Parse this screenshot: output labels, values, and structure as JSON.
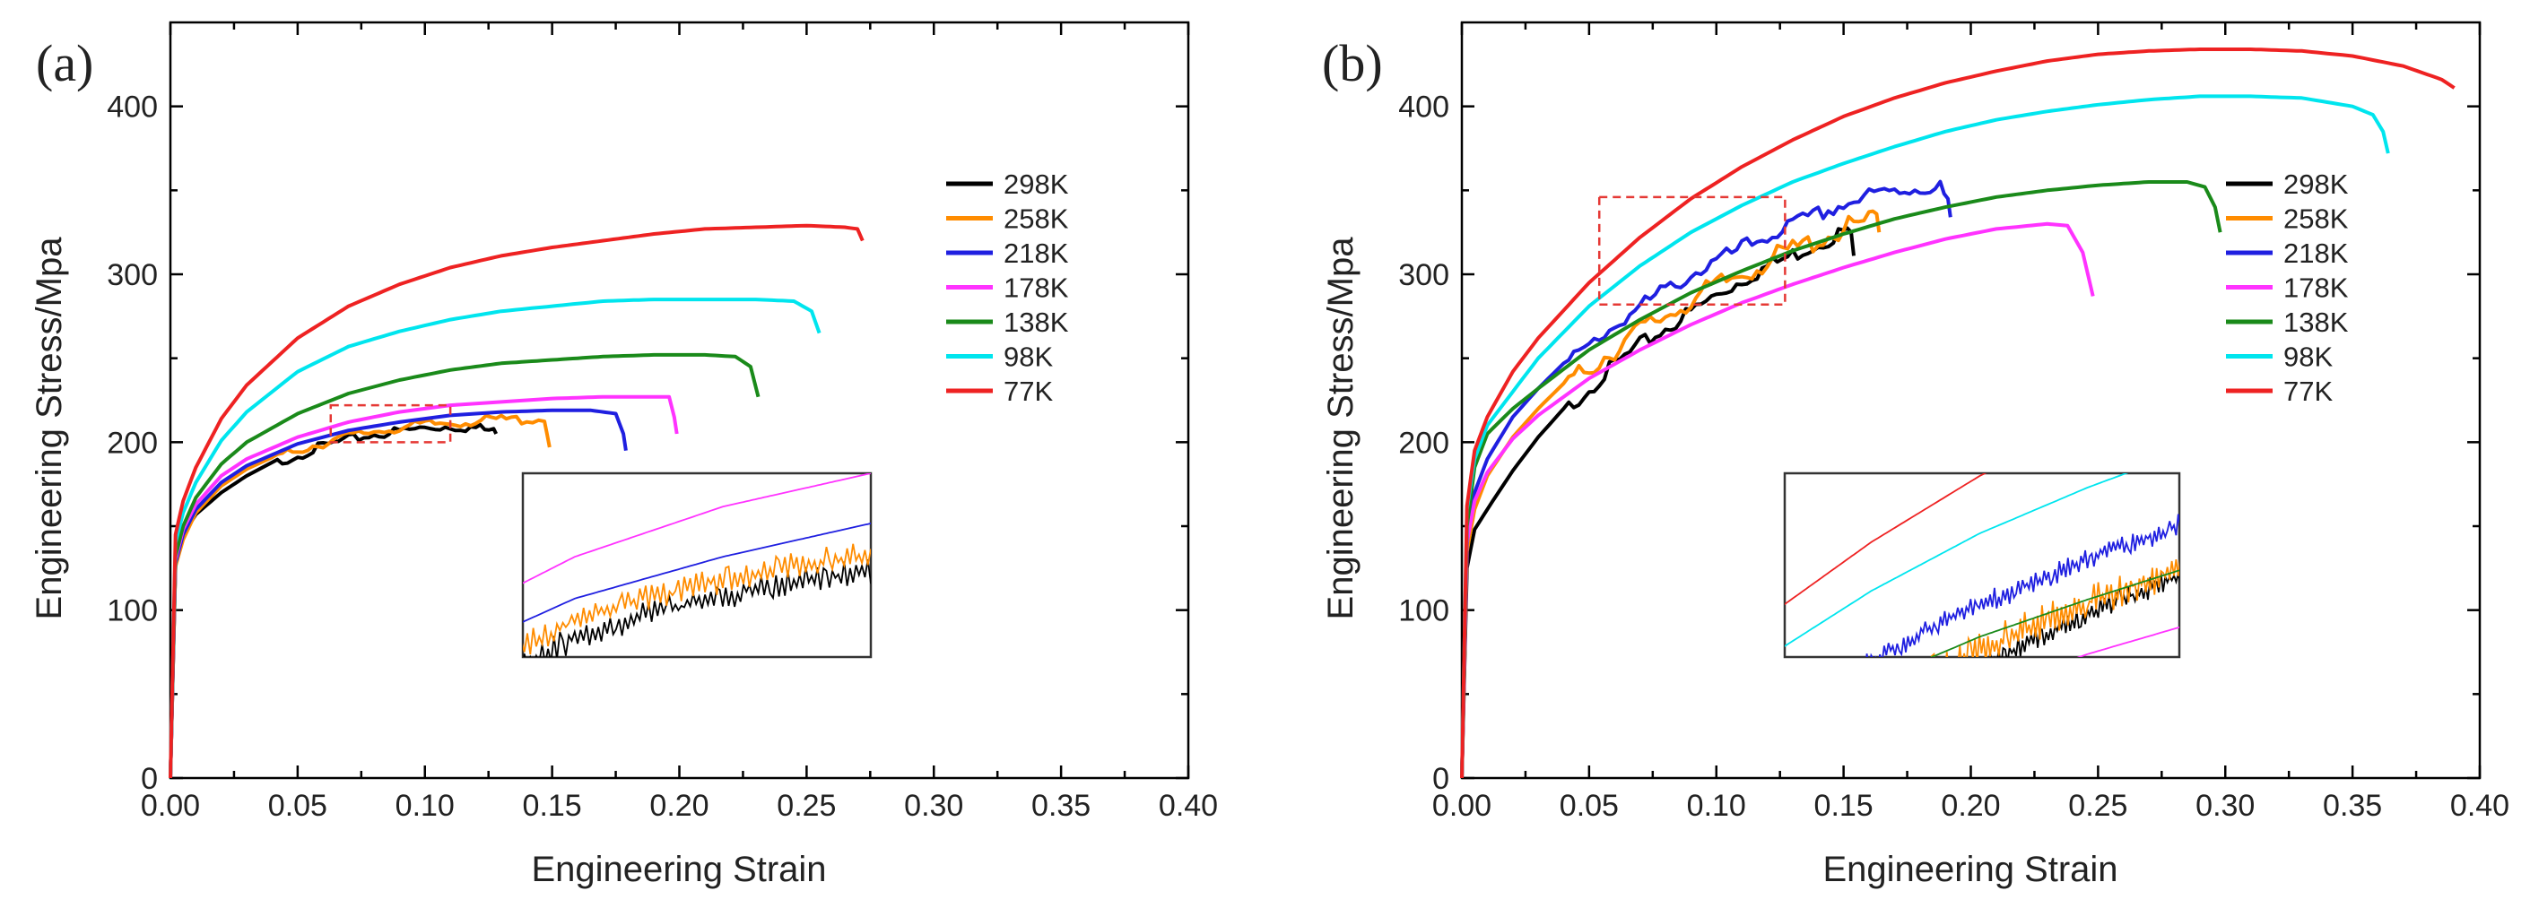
{
  "chart_data": [
    {
      "type": "line",
      "panel_label": "(a)",
      "xlabel": "Engineering Strain",
      "ylabel": "Engineering Stress/Mpa",
      "xlim": [
        0,
        0.4
      ],
      "ylim": [
        0,
        450
      ],
      "x_ticks": [
        "0.00",
        "0.05",
        "0.10",
        "0.15",
        "0.20",
        "0.25",
        "0.30",
        "0.35",
        "0.40"
      ],
      "y_ticks": [
        "0",
        "100",
        "200",
        "300",
        "400"
      ],
      "legend_position": "right",
      "zoom_box": {
        "x": [
          0.063,
          0.11
        ],
        "y": [
          200,
          222
        ]
      },
      "series": [
        {
          "name": "298K",
          "color": "#000000",
          "x": [
            0,
            0.002,
            0.005,
            0.01,
            0.02,
            0.03,
            0.04,
            0.05,
            0.06,
            0.07,
            0.08,
            0.09,
            0.1,
            0.11,
            0.12,
            0.127,
            0.128
          ],
          "y": [
            0,
            128,
            145,
            157,
            170,
            180,
            188,
            194,
            199,
            203,
            206,
            208,
            210,
            211,
            210,
            208,
            205
          ]
        },
        {
          "name": "258K",
          "color": "#ff8c00",
          "x": [
            0,
            0.002,
            0.005,
            0.01,
            0.02,
            0.03,
            0.04,
            0.05,
            0.06,
            0.07,
            0.08,
            0.09,
            0.1,
            0.11,
            0.12,
            0.13,
            0.14,
            0.147,
            0.148,
            0.149
          ],
          "y": [
            0,
            126,
            142,
            158,
            174,
            184,
            191,
            197,
            201,
            205,
            208,
            210,
            212,
            213,
            214,
            215,
            215,
            215,
            205,
            197
          ]
        },
        {
          "name": "218K",
          "color": "#1f1fe0",
          "x": [
            0,
            0.002,
            0.005,
            0.01,
            0.02,
            0.03,
            0.05,
            0.07,
            0.09,
            0.11,
            0.13,
            0.15,
            0.165,
            0.175,
            0.178,
            0.179
          ],
          "y": [
            0,
            128,
            145,
            160,
            176,
            186,
            199,
            207,
            212,
            216,
            218,
            219,
            219,
            217,
            205,
            195
          ]
        },
        {
          "name": "178K",
          "color": "#ff33ff",
          "x": [
            0,
            0.002,
            0.005,
            0.01,
            0.02,
            0.03,
            0.05,
            0.07,
            0.09,
            0.11,
            0.13,
            0.15,
            0.17,
            0.19,
            0.196,
            0.198,
            0.199
          ],
          "y": [
            0,
            130,
            148,
            163,
            180,
            190,
            203,
            212,
            218,
            222,
            224,
            226,
            227,
            227,
            227,
            215,
            205
          ]
        },
        {
          "name": "138K",
          "color": "#1a8a1a",
          "x": [
            0,
            0.002,
            0.005,
            0.01,
            0.02,
            0.03,
            0.05,
            0.07,
            0.09,
            0.11,
            0.13,
            0.15,
            0.17,
            0.19,
            0.21,
            0.222,
            0.228,
            0.231
          ],
          "y": [
            0,
            132,
            150,
            167,
            187,
            200,
            217,
            229,
            237,
            243,
            247,
            249,
            251,
            252,
            252,
            251,
            245,
            227
          ]
        },
        {
          "name": "98K",
          "color": "#00e5ee",
          "x": [
            0,
            0.002,
            0.005,
            0.01,
            0.02,
            0.03,
            0.05,
            0.07,
            0.09,
            0.11,
            0.13,
            0.15,
            0.17,
            0.19,
            0.21,
            0.23,
            0.245,
            0.252,
            0.255
          ],
          "y": [
            0,
            140,
            158,
            176,
            201,
            218,
            242,
            257,
            266,
            273,
            278,
            281,
            284,
            285,
            285,
            285,
            284,
            278,
            265
          ]
        },
        {
          "name": "77K",
          "color": "#ee2222",
          "x": [
            0,
            0.002,
            0.005,
            0.01,
            0.02,
            0.03,
            0.05,
            0.07,
            0.09,
            0.11,
            0.13,
            0.15,
            0.17,
            0.19,
            0.21,
            0.23,
            0.25,
            0.265,
            0.27,
            0.272
          ],
          "y": [
            0,
            145,
            165,
            185,
            214,
            234,
            262,
            281,
            294,
            304,
            311,
            316,
            320,
            324,
            327,
            328,
            329,
            328,
            327,
            320
          ]
        }
      ]
    },
    {
      "type": "line",
      "panel_label": "(b)",
      "xlabel": "Engineering Strain",
      "ylabel": "Engineering Stress/Mpa",
      "xlim": [
        0,
        0.4
      ],
      "ylim": [
        0,
        450
      ],
      "x_ticks": [
        "0.00",
        "0.05",
        "0.10",
        "0.15",
        "0.20",
        "0.25",
        "0.30",
        "0.35",
        "0.40"
      ],
      "y_ticks": [
        "0",
        "100",
        "200",
        "300",
        "400"
      ],
      "legend_position": "right",
      "zoom_box": {
        "x": [
          0.054,
          0.127
        ],
        "y": [
          282,
          346
        ]
      },
      "series": [
        {
          "name": "298K",
          "color": "#000000",
          "x": [
            0,
            0.002,
            0.005,
            0.01,
            0.02,
            0.03,
            0.04,
            0.05,
            0.06,
            0.07,
            0.08,
            0.09,
            0.1,
            0.11,
            0.12,
            0.13,
            0.14,
            0.15,
            0.153,
            0.154
          ],
          "y": [
            0,
            125,
            148,
            160,
            183,
            203,
            220,
            235,
            248,
            260,
            270,
            280,
            290,
            299,
            307,
            314,
            321,
            328,
            325,
            311
          ]
        },
        {
          "name": "258K",
          "color": "#ff8c00",
          "x": [
            0,
            0.002,
            0.005,
            0.01,
            0.02,
            0.03,
            0.04,
            0.05,
            0.06,
            0.07,
            0.08,
            0.09,
            0.1,
            0.11,
            0.12,
            0.13,
            0.14,
            0.15,
            0.16,
            0.163,
            0.164
          ],
          "y": [
            0,
            135,
            160,
            180,
            203,
            220,
            235,
            248,
            259,
            270,
            279,
            288,
            296,
            304,
            311,
            318,
            324,
            330,
            335,
            336,
            325
          ]
        },
        {
          "name": "218K",
          "color": "#1f1fe0",
          "x": [
            0,
            0.002,
            0.005,
            0.01,
            0.02,
            0.03,
            0.04,
            0.05,
            0.06,
            0.07,
            0.08,
            0.09,
            0.1,
            0.11,
            0.12,
            0.13,
            0.14,
            0.15,
            0.16,
            0.17,
            0.18,
            0.188,
            0.191,
            0.192
          ],
          "y": [
            0,
            140,
            170,
            190,
            215,
            232,
            247,
            260,
            272,
            283,
            293,
            302,
            310,
            318,
            325,
            332,
            338,
            344,
            349,
            352,
            354,
            354,
            345,
            334
          ]
        },
        {
          "name": "178K",
          "color": "#ff33ff",
          "x": [
            0,
            0.002,
            0.005,
            0.01,
            0.02,
            0.03,
            0.05,
            0.07,
            0.09,
            0.11,
            0.13,
            0.15,
            0.17,
            0.19,
            0.21,
            0.23,
            0.238,
            0.244,
            0.248
          ],
          "y": [
            0,
            140,
            165,
            182,
            202,
            216,
            238,
            255,
            270,
            283,
            294,
            304,
            313,
            321,
            327,
            330,
            329,
            313,
            287
          ]
        },
        {
          "name": "138K",
          "color": "#1a8a1a",
          "x": [
            0,
            0.002,
            0.005,
            0.01,
            0.02,
            0.03,
            0.05,
            0.07,
            0.09,
            0.11,
            0.13,
            0.15,
            0.17,
            0.19,
            0.21,
            0.23,
            0.25,
            0.27,
            0.285,
            0.292,
            0.296,
            0.298
          ],
          "y": [
            0,
            150,
            185,
            205,
            220,
            232,
            255,
            273,
            289,
            302,
            314,
            324,
            333,
            340,
            346,
            350,
            353,
            355,
            355,
            352,
            340,
            325
          ]
        },
        {
          "name": "98K",
          "color": "#00e5ee",
          "x": [
            0,
            0.002,
            0.005,
            0.01,
            0.02,
            0.03,
            0.05,
            0.07,
            0.09,
            0.11,
            0.13,
            0.15,
            0.17,
            0.19,
            0.21,
            0.23,
            0.25,
            0.27,
            0.29,
            0.31,
            0.33,
            0.35,
            0.358,
            0.362,
            0.364
          ],
          "y": [
            0,
            160,
            190,
            210,
            230,
            250,
            281,
            305,
            325,
            341,
            355,
            366,
            376,
            385,
            392,
            397,
            401,
            404,
            406,
            406,
            405,
            400,
            395,
            385,
            372
          ]
        },
        {
          "name": "77K",
          "color": "#ee2222",
          "x": [
            0,
            0.002,
            0.005,
            0.01,
            0.02,
            0.03,
            0.05,
            0.07,
            0.09,
            0.11,
            0.13,
            0.15,
            0.17,
            0.19,
            0.21,
            0.23,
            0.25,
            0.27,
            0.29,
            0.31,
            0.33,
            0.35,
            0.37,
            0.385,
            0.39
          ],
          "y": [
            0,
            162,
            195,
            215,
            242,
            262,
            295,
            322,
            345,
            364,
            380,
            394,
            405,
            414,
            421,
            427,
            431,
            433,
            434,
            434,
            433,
            430,
            424,
            416,
            411
          ]
        }
      ]
    }
  ]
}
